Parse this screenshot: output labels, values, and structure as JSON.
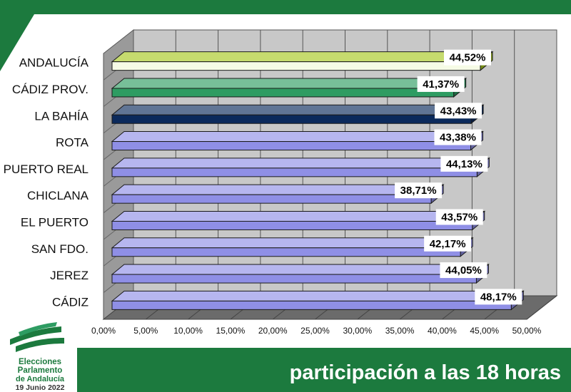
{
  "header": {
    "colors": {
      "green": "#1c7a3e"
    }
  },
  "logo": {
    "icon": "andalusia-flag-emblem-icon",
    "line1": "Elecciones",
    "line2": "Parlamento",
    "line3": "de Andalucía",
    "date": "19 Junio 2022"
  },
  "footer": {
    "caption": "participación a las 18 horas"
  },
  "chart_data": {
    "type": "bar",
    "orientation": "horizontal",
    "three_d": true,
    "categories": [
      "ANDALUCÍA",
      "CÁDIZ PROV.",
      "LA BAHÍA",
      "ROTA",
      "PUERTO REAL",
      "CHICLANA",
      "EL PUERTO",
      "SAN FDO.",
      "JEREZ",
      "CÁDIZ"
    ],
    "values": [
      44.52,
      41.37,
      43.43,
      43.38,
      44.13,
      38.71,
      43.57,
      42.17,
      44.05,
      48.17
    ],
    "value_labels": [
      "44,52%",
      "41,37%",
      "43,43%",
      "43,38%",
      "44,13%",
      "38,71%",
      "43,57%",
      "42,17%",
      "44,05%",
      "48,17%"
    ],
    "bar_colors": [
      "#a8c820",
      "#2e9c62",
      "#0b2a5c",
      "#8f8fe6",
      "#8f8fe6",
      "#8f8fe6",
      "#8f8fe6",
      "#8f8fe6",
      "#8f8fe6",
      "#8f8fe6"
    ],
    "xlim": [
      0,
      50
    ],
    "ticks": [
      0,
      5,
      10,
      15,
      20,
      25,
      30,
      35,
      40,
      45,
      50
    ],
    "tick_labels": [
      "0,00%",
      "5,00%",
      "10,00%",
      "15,00%",
      "20,00%",
      "25,00%",
      "30,00%",
      "35,00%",
      "40,00%",
      "45,00%",
      "50,00%"
    ],
    "grid": true,
    "legend": "none",
    "title": "",
    "xlabel": "",
    "ylabel": ""
  }
}
